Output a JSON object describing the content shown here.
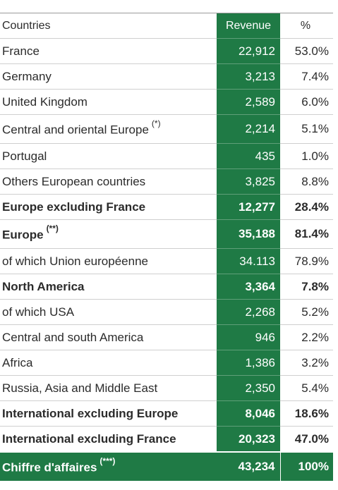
{
  "table": {
    "header": [
      "Countries",
      "Revenue",
      "%"
    ],
    "rows": [
      {
        "cells": [
          "France",
          "22,912",
          "53.0%"
        ]
      },
      {
        "cells": [
          "Germany",
          "3,213",
          "7.4%"
        ]
      },
      {
        "cells": [
          "United Kingdom",
          "2,589",
          "6.0%"
        ]
      },
      {
        "cells": [
          "Central and oriental Europe",
          "2,214",
          "5.1%"
        ],
        "note": "(*)"
      },
      {
        "cells": [
          "Portugal",
          "435",
          "1.0%"
        ]
      },
      {
        "cells": [
          "Others European countries",
          "3,825",
          "8.8%"
        ]
      },
      {
        "cells": [
          "Europe excluding France",
          "12,277",
          "28.4%"
        ],
        "bold": true
      },
      {
        "cells": [
          "Europe",
          "35,188",
          "81.4%"
        ],
        "bold": true,
        "note": "(**)"
      },
      {
        "cells": [
          "of which Union européenne",
          "34.113",
          "78.9%"
        ]
      },
      {
        "cells": [
          "North America",
          "3,364",
          "7.8%"
        ],
        "bold": true
      },
      {
        "cells": [
          "of which USA",
          "2,268",
          "5.2%"
        ]
      },
      {
        "cells": [
          "Central and south America",
          "946",
          "2.2%"
        ]
      },
      {
        "cells": [
          "Africa",
          "1,386",
          "3.2%"
        ]
      },
      {
        "cells": [
          "Russia, Asia and Middle East",
          "2,350",
          "5.4%"
        ]
      },
      {
        "cells": [
          "International excluding Europe",
          "8,046",
          "18.6%"
        ],
        "bold": true
      },
      {
        "cells": [
          "International excluding France",
          "20,323",
          "47.0%"
        ],
        "bold": true
      },
      {
        "cells": [
          "Chiffre d'affaires",
          "43,234",
          "100%"
        ],
        "bold": true,
        "total": true,
        "note": "(***)"
      }
    ]
  }
}
